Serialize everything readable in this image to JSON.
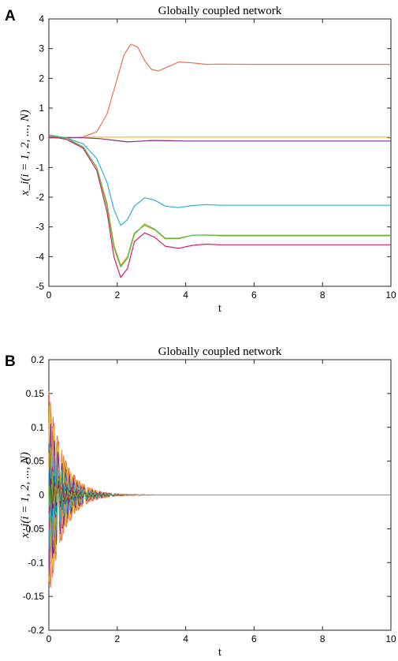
{
  "panels": [
    {
      "letter": "A"
    },
    {
      "letter": "B"
    }
  ],
  "chart_data": [
    {
      "type": "line",
      "title": "Globally coupled network",
      "xlabel": "t",
      "ylabel": "x_i(i = 1, 2, ..., N)",
      "xlim": [
        0,
        10
      ],
      "ylim": [
        -5,
        4
      ],
      "xticks": [
        0,
        2,
        4,
        6,
        8,
        10
      ],
      "yticks": [
        -5,
        -4,
        -3,
        -2,
        -1,
        0,
        1,
        2,
        3,
        4
      ],
      "xtick_labels": [
        "0",
        "2",
        "4",
        "6",
        "8",
        "10"
      ],
      "ytick_labels": [
        "-5",
        "-4",
        "-3",
        "-2",
        "-1",
        "0",
        "1",
        "2",
        "3",
        "4"
      ],
      "grid": false,
      "series": [
        {
          "color": "#e8734f",
          "x": [
            0,
            0.5,
            1,
            1.4,
            1.7,
            2,
            2.2,
            2.4,
            2.6,
            2.8,
            3,
            3.2,
            3.5,
            3.8,
            4.2,
            4.6,
            5,
            6,
            7,
            8,
            10
          ],
          "y": [
            0,
            0,
            0.03,
            0.2,
            0.8,
            2.0,
            2.8,
            3.15,
            3.05,
            2.6,
            2.3,
            2.25,
            2.4,
            2.55,
            2.52,
            2.47,
            2.48,
            2.47,
            2.47,
            2.47,
            2.47
          ]
        },
        {
          "color": "#f0c020",
          "x": [
            0,
            1,
            2,
            3,
            4,
            5,
            6,
            7,
            8,
            9,
            10
          ],
          "y": [
            0.02,
            0.02,
            0.02,
            0.02,
            0.02,
            0.02,
            0.02,
            0.02,
            0.02,
            0.02,
            0.02
          ]
        },
        {
          "color": "#7e2f8e",
          "x": [
            0,
            1,
            1.5,
            2,
            2.3,
            2.6,
            3,
            3.5,
            4,
            5,
            6,
            8,
            10
          ],
          "y": [
            0,
            0,
            -0.03,
            -0.1,
            -0.14,
            -0.12,
            -0.09,
            -0.1,
            -0.11,
            -0.11,
            -0.11,
            -0.11,
            -0.11
          ]
        },
        {
          "color": "#30b0d8",
          "x": [
            0,
            0.5,
            1,
            1.4,
            1.7,
            1.9,
            2.1,
            2.3,
            2.5,
            2.8,
            3.1,
            3.4,
            3.8,
            4.2,
            4.6,
            5,
            6,
            7,
            8,
            10
          ],
          "y": [
            0.05,
            0,
            -0.2,
            -0.7,
            -1.5,
            -2.4,
            -2.95,
            -2.75,
            -2.3,
            -2.02,
            -2.1,
            -2.3,
            -2.35,
            -2.28,
            -2.25,
            -2.27,
            -2.27,
            -2.27,
            -2.27,
            -2.27
          ]
        },
        {
          "color": "#c8a010",
          "x": [
            0,
            0.5,
            1,
            1.4,
            1.7,
            1.9,
            2.1,
            2.3,
            2.5,
            2.8,
            3.1,
            3.4,
            3.8,
            4.2,
            4.6,
            5,
            6,
            7,
            8,
            10
          ],
          "y": [
            0.05,
            -0.05,
            -0.3,
            -1.0,
            -2.2,
            -3.6,
            -4.3,
            -4.0,
            -3.2,
            -2.95,
            -3.1,
            -3.4,
            -3.4,
            -3.28,
            -3.27,
            -3.3,
            -3.3,
            -3.3,
            -3.3,
            -3.3
          ]
        },
        {
          "color": "#d81b60",
          "x": [
            0,
            0.5,
            1,
            1.4,
            1.7,
            1.9,
            2.1,
            2.3,
            2.5,
            2.8,
            3.1,
            3.4,
            3.8,
            4.2,
            4.6,
            5,
            6,
            7,
            8,
            10
          ],
          "y": [
            0.05,
            -0.05,
            -0.35,
            -1.1,
            -2.5,
            -4.0,
            -4.7,
            -4.4,
            -3.5,
            -3.2,
            -3.35,
            -3.65,
            -3.72,
            -3.62,
            -3.58,
            -3.6,
            -3.6,
            -3.6,
            -3.6,
            -3.6
          ]
        },
        {
          "color": "#4dbd4d",
          "x": [
            0,
            0.5,
            1,
            1.4,
            1.7,
            1.9,
            2.1,
            2.3,
            2.5,
            2.8,
            3.1,
            3.4,
            3.8,
            4.2,
            4.6,
            5,
            6,
            7,
            8,
            10
          ],
          "y": [
            0.1,
            0,
            -0.3,
            -1.0,
            -2.3,
            -3.7,
            -4.35,
            -4.05,
            -3.25,
            -2.9,
            -3.08,
            -3.38,
            -3.38,
            -3.28,
            -3.28,
            -3.28,
            -3.28,
            -3.28,
            -3.28,
            -3.28
          ]
        }
      ]
    },
    {
      "type": "line",
      "title": "Globally coupled network",
      "xlabel": "t",
      "ylabel": "x_i(i = 1, 2, ..., N)",
      "xlim": [
        0,
        10
      ],
      "ylim": [
        -0.2,
        0.2
      ],
      "xticks": [
        0,
        2,
        4,
        6,
        8,
        10
      ],
      "yticks": [
        -0.2,
        -0.15,
        -0.1,
        -0.05,
        0,
        0.05,
        0.1,
        0.15,
        0.2
      ],
      "xtick_labels": [
        "0",
        "2",
        "4",
        "6",
        "8",
        "10"
      ],
      "ytick_labels": [
        "-0.2",
        "-0.15",
        "-0.1",
        "-0.05",
        "0",
        "0.05",
        "0.1",
        "0.15",
        "0.2"
      ],
      "grid": false,
      "pattern": "many series oscillating near t=0 with amplitudes up to about 0.18, decaying to 0 by t≈2",
      "envelope_amplitudes": [
        0.18,
        0.15,
        0.12,
        0.1,
        0.08,
        0.06,
        0.05,
        0.04,
        0.03,
        0.02
      ],
      "decay_rate": 2.2,
      "converged_value": 0,
      "colors": [
        "#e8734f",
        "#f0c020",
        "#7e2f8e",
        "#30b0d8",
        "#c8a010",
        "#d81b60",
        "#4dbd4d",
        "#0072bd",
        "#a2142f",
        "#77ac30"
      ]
    }
  ]
}
